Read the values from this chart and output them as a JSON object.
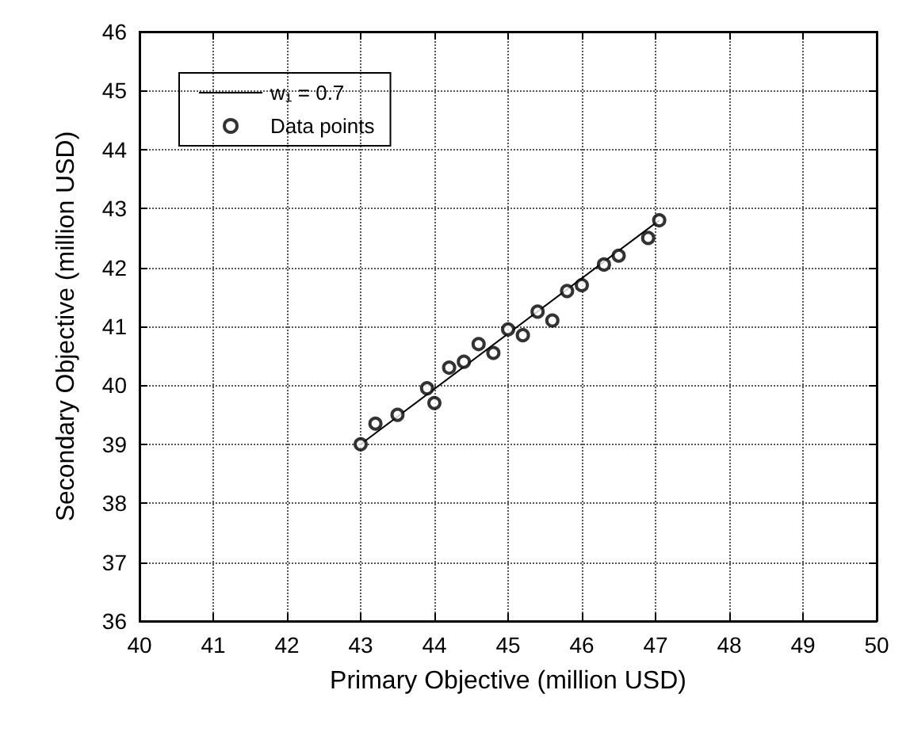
{
  "chart_data": {
    "type": "scatter",
    "xlabel": "Primary Objective (million USD)",
    "ylabel": "Secondary Objective (million USD)",
    "xlim": [
      40,
      50
    ],
    "xticks": [
      40,
      41,
      42,
      43,
      44,
      45,
      46,
      47,
      48,
      49,
      50
    ],
    "ylim": [
      36,
      46
    ],
    "yticks": [
      36,
      37,
      38,
      39,
      40,
      41,
      42,
      43,
      44,
      45,
      46
    ],
    "grid": true,
    "legend": "top left",
    "series": [
      {
        "name": "w₁ = 0.7",
        "type": "line",
        "color": "#000000",
        "marker": "none",
        "line_style": "solid",
        "x": [
          43,
          47.05
        ],
        "values": [
          39,
          42.8
        ]
      },
      {
        "name": "Data points",
        "type": "scatter",
        "color": "#000000",
        "marker": "circle",
        "x": [
          43,
          43.2,
          43.5,
          43.9,
          44,
          44.2,
          44.4,
          44.6,
          44.8,
          45,
          45.2,
          45.4,
          45.6,
          45.8,
          46,
          46.3,
          46.5,
          46.9,
          47.05
        ],
        "values": [
          39,
          39.35,
          39.5,
          39.95,
          39.7,
          40.3,
          40.4,
          40.7,
          40.55,
          40.95,
          40.85,
          41.25,
          41.1,
          41.6,
          41.7,
          42.05,
          42.2,
          42.5,
          42.8
        ]
      }
    ]
  }
}
